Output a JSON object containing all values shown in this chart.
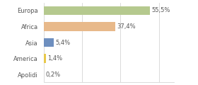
{
  "categories": [
    "Europa",
    "Africa",
    "Asia",
    "America",
    "Apolidi"
  ],
  "values": [
    55.5,
    37.4,
    5.4,
    1.4,
    0.2
  ],
  "labels": [
    "55,5%",
    "37,4%",
    "5,4%",
    "1,4%",
    "0,2%"
  ],
  "bar_colors": [
    "#b5c98e",
    "#e8b98a",
    "#6e8fbf",
    "#e8c84a",
    "#cccccc"
  ],
  "background_color": "#ffffff",
  "xlim": [
    0,
    68
  ],
  "label_fontsize": 6.0,
  "category_fontsize": 6.0,
  "bar_height": 0.55,
  "grid_interval": 20
}
